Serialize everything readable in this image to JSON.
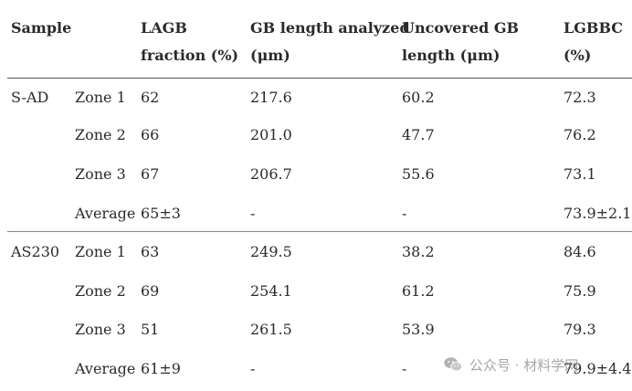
{
  "header": {
    "sample": "Sample",
    "lagb_line1": "LAGB",
    "lagb_line2": "fraction (%)",
    "gb_len_line1": "GB length analyzed",
    "gb_len_line2": "(μm)",
    "uncov_line1": "Uncovered GB",
    "uncov_line2": "length (μm)",
    "lgbbc_line1": "LGBBC",
    "lgbbc_line2": "(%)"
  },
  "rows": [
    {
      "sample": "S-AD",
      "zone": "Zone 1",
      "lagb": "62",
      "gb_length": "217.6",
      "uncovered": "60.2",
      "lgbbc": "72.3"
    },
    {
      "sample": "",
      "zone": "Zone 2",
      "lagb": "66",
      "gb_length": "201.0",
      "uncovered": "47.7",
      "lgbbc": "76.2"
    },
    {
      "sample": "",
      "zone": "Zone 3",
      "lagb": "67",
      "gb_length": "206.7",
      "uncovered": "55.6",
      "lgbbc": "73.1"
    },
    {
      "sample": "",
      "zone": "Average",
      "lagb": "65±3",
      "gb_length": "-",
      "uncovered": "-",
      "lgbbc": "73.9±2.1"
    },
    {
      "sample": "AS230",
      "zone": "Zone 1",
      "lagb": "63",
      "gb_length": "249.5",
      "uncovered": "38.2",
      "lgbbc": "84.6"
    },
    {
      "sample": "",
      "zone": "Zone 2",
      "lagb": "69",
      "gb_length": "254.1",
      "uncovered": "61.2",
      "lgbbc": "75.9"
    },
    {
      "sample": "",
      "zone": "Zone 3",
      "lagb": "51",
      "gb_length": "261.5",
      "uncovered": "53.9",
      "lgbbc": "79.3"
    },
    {
      "sample": "",
      "zone": "Average",
      "lagb": "61±9",
      "gb_length": "-",
      "uncovered": "-",
      "lgbbc": "79.9±4.4"
    }
  ],
  "watermark": {
    "text": "公众号 · 材料学网",
    "icon": "wechat-icon"
  }
}
